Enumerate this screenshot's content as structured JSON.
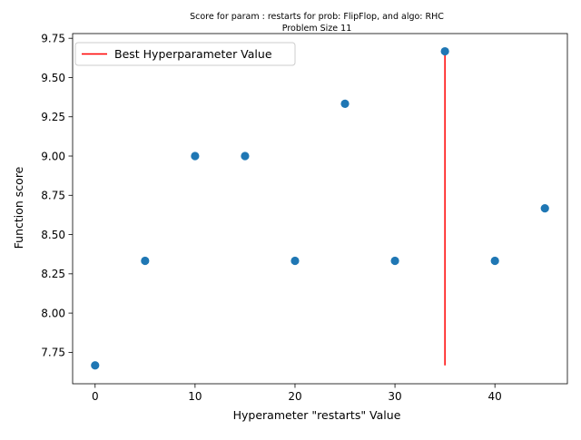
{
  "chart_data": {
    "type": "scatter",
    "title": "Score for param : restarts for prob: FlipFlop, and algo: RHC",
    "subtitle": "Problem Size 11",
    "xlabel": "Hyperameter \"restarts\" Value",
    "ylabel": "Function score",
    "xlim": [
      -2.25,
      47.25
    ],
    "ylim": [
      7.55,
      9.78
    ],
    "x_ticks": [
      0,
      10,
      20,
      30,
      40
    ],
    "y_ticks": [
      7.75,
      8.0,
      8.25,
      8.5,
      8.75,
      9.0,
      9.25,
      9.5,
      9.75
    ],
    "y_tick_labels": [
      "7.75",
      "8.00",
      "8.25",
      "8.50",
      "8.75",
      "9.00",
      "9.25",
      "9.50",
      "9.75"
    ],
    "grid": false,
    "legend_position": "top-left",
    "series": [
      {
        "kind": "scatter",
        "color": "#1f77b4",
        "points": [
          {
            "x": 0,
            "y": 7.667
          },
          {
            "x": 5,
            "y": 8.333
          },
          {
            "x": 10,
            "y": 9.0
          },
          {
            "x": 15,
            "y": 9.0
          },
          {
            "x": 20,
            "y": 8.333
          },
          {
            "x": 25,
            "y": 9.333
          },
          {
            "x": 30,
            "y": 8.333
          },
          {
            "x": 35,
            "y": 9.667
          },
          {
            "x": 40,
            "y": 8.333
          },
          {
            "x": 45,
            "y": 8.667
          }
        ]
      },
      {
        "kind": "vline",
        "name": "Best Hyperparameter Value",
        "color": "#ff0000",
        "x": 35,
        "y_from": 7.667,
        "y_to": 9.667
      }
    ]
  }
}
